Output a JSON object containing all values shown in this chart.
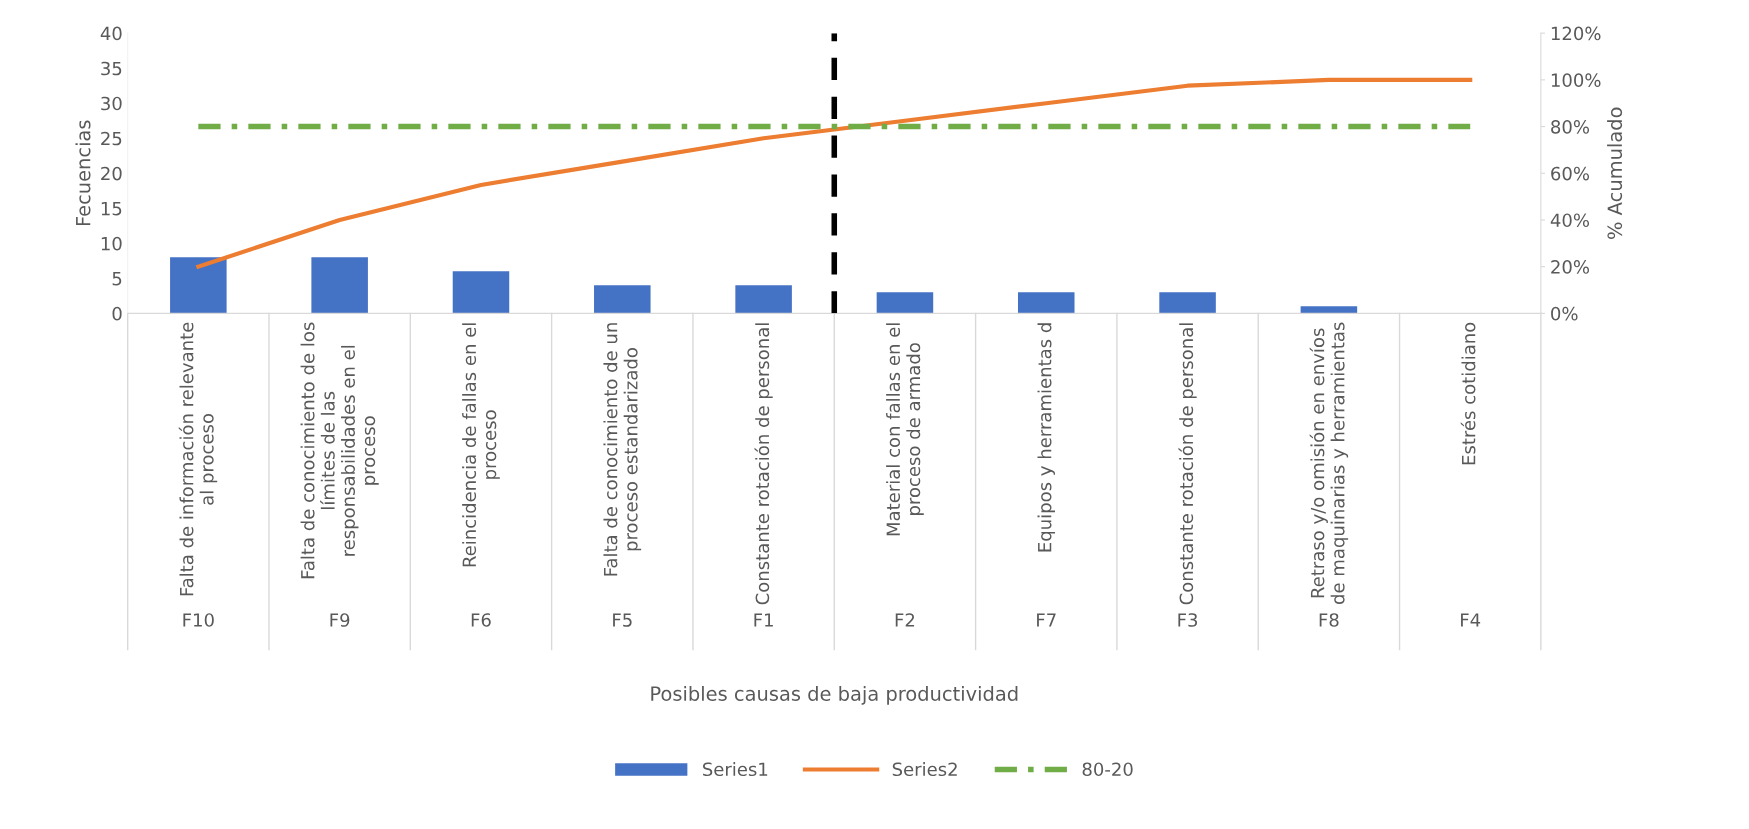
{
  "chart_data": {
    "type": "bar",
    "xlabel": "Posibles causas de baja productividad",
    "ylabel": "Fecuencias",
    "y2label": "% Acumulado",
    "categories": [
      "Falta de información relevante al proceso",
      "Falta de conocimiento de los límites de las responsabilidades en el proceso",
      "Reincidencia de fallas en el proceso",
      "Falta de conocimiento de un proceso estandarizado",
      "Constante rotación de personal",
      "Material con fallas en el proceso de armado",
      "Equipos y herramientas d",
      "Constante rotación de personal",
      "Retraso y/o omisión en envíos de maquinarias y herramientas",
      "Estrés cotidiano"
    ],
    "series": [
      {
        "name": "Series1",
        "color": "#4472c4",
        "values": [
          8,
          8,
          6,
          4,
          4,
          3,
          3,
          3,
          1,
          0
        ]
      },
      {
        "name": "Series2",
        "type": "line",
        "axis": "y2",
        "color": "#ed7d31",
        "line_style": "solid",
        "values": [
          20,
          40,
          55,
          65,
          75,
          82.5,
          90,
          97.5,
          100,
          100
        ]
      },
      {
        "name": "80-20",
        "type": "line",
        "axis": "y2",
        "color": "#70ad47",
        "line_style": "dashed",
        "values": [
          80,
          80,
          80,
          80,
          80,
          80,
          80,
          80,
          80,
          80
        ]
      }
    ],
    "ylim": [
      0,
      40
    ],
    "yticks": [
      0,
      5,
      10,
      15,
      20,
      25,
      30,
      35,
      40
    ],
    "y2lim": [
      0,
      120
    ],
    "y2ticks": [
      {
        "value": 0,
        "label": "0%"
      },
      {
        "value": 20,
        "label": "20%"
      },
      {
        "value": 40,
        "label": "40%"
      },
      {
        "value": 60,
        "label": "60%"
      },
      {
        "value": 80,
        "label": "80%"
      },
      {
        "value": 100,
        "label": "100%"
      },
      {
        "value": 120,
        "label": "120%"
      }
    ],
    "annotations": [
      "F10",
      "F9",
      "F6",
      "F5",
      "F1",
      "F2",
      "F7",
      "F3",
      "F8",
      "F4"
    ],
    "grid": false,
    "legend": "bottom"
  }
}
